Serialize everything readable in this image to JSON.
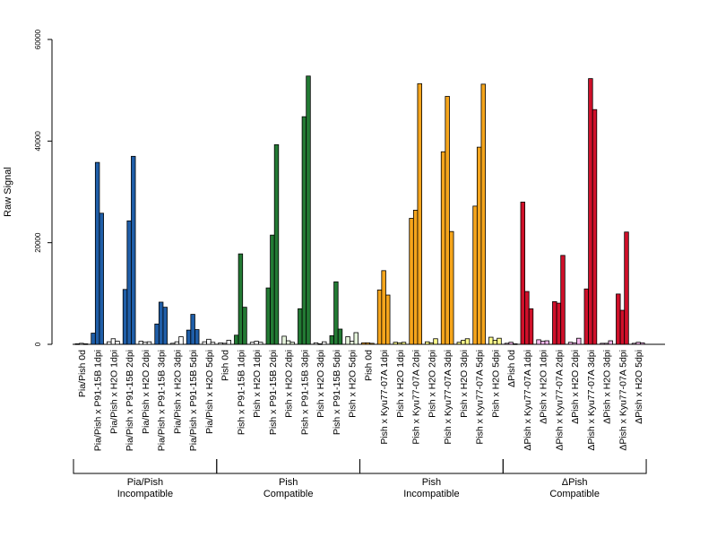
{
  "chart_data": {
    "type": "bar",
    "ylabel": "Raw Signal",
    "xlabel": "",
    "ylim": [
      0,
      60000
    ],
    "yticks": [
      0,
      20000,
      40000,
      60000
    ],
    "grid": false,
    "bars_per_condition": 3,
    "colors": {
      "blue": "#1f5ea8",
      "green": "#237a34",
      "orange": "#f5a51c",
      "red": "#d0102a",
      "blank": "#ffffff",
      "pale_green": "#e6f5dc",
      "pale_yellow": "#fdfb8a",
      "pale_pink": "#f7b8ee"
    },
    "categories": [
      "Pia/Pish 0d",
      "Pia/Pish x P91-15B 1dpi",
      "Pia/Pish x H2O 1dpi",
      "Pia/Pish x P91-15B 2dpi",
      "Pia/Pish x H2O 2dpi",
      "Pia/Pish x P91-15B 3dpi",
      "Pia/Pish x H2O 3dpi",
      "Pia/Pish x P91-15B 5dpi",
      "Pia/Pish x H2O 5dpi",
      "Pish 0d",
      "Pish x P91-15B 1dpi",
      "Pish x H2O 1dpi",
      "Pish x P91-15B 2dpi",
      "Pish x H2O 2dpi",
      "Pish x P91-15B 3dpi",
      "Pish x H2O 3dpi",
      "Pish x P91-15B 5dpi",
      "Pish x H2O 5dpi",
      "Pish 0d",
      "Pish x Kyu77-07A 1dpi",
      "Pish x H2O 1dpi",
      "Pish x Kyu77-07A 2dpi",
      "Pish x H2O 2dpi",
      "Pish x Kyu77-07A 3dpi",
      "Pish x H2O 3dpi",
      "Pish x Kyu77-07A 5dpi",
      "Pish x H2O 5dpi",
      "ΔPish 0d",
      "ΔPish x Kyu77-07A 1dpi",
      "ΔPish x H2O 1dpi",
      "ΔPish x Kyu77-07A 2dpi",
      "ΔPish x H2O 2dpi",
      "ΔPish x Kyu77-07A 3dpi",
      "ΔPish x H2O 3dpi",
      "ΔPish x Kyu77-07A 5dpi",
      "ΔPish x H2O 5dpi"
    ],
    "values": [
      [
        100,
        200,
        100
      ],
      [
        2200,
        35800,
        25800
      ],
      [
        500,
        1100,
        600
      ],
      [
        10800,
        24300,
        37000
      ],
      [
        600,
        400,
        500
      ],
      [
        4000,
        8300,
        7300
      ],
      [
        200,
        500,
        1500
      ],
      [
        2800,
        5900,
        2900
      ],
      [
        500,
        1000,
        400
      ],
      [
        300,
        200,
        800
      ],
      [
        1800,
        17800,
        7300
      ],
      [
        400,
        600,
        400
      ],
      [
        11100,
        21500,
        39300
      ],
      [
        1600,
        700,
        400
      ],
      [
        7000,
        44800,
        52800
      ],
      [
        300,
        100,
        500
      ],
      [
        1700,
        12300,
        3000
      ],
      [
        1500,
        600,
        2300
      ],
      [
        300,
        300,
        200
      ],
      [
        10700,
        14500,
        9700
      ],
      [
        400,
        300,
        400
      ],
      [
        24800,
        26400,
        51300
      ],
      [
        500,
        300,
        1100
      ],
      [
        37900,
        48800,
        22200
      ],
      [
        400,
        800,
        1100
      ],
      [
        27200,
        38800,
        51200
      ],
      [
        1400,
        800,
        1200
      ],
      [
        200,
        400,
        100
      ],
      [
        28000,
        10400,
        7000
      ],
      [
        900,
        600,
        700
      ],
      [
        8400,
        8100,
        17500
      ],
      [
        400,
        300,
        1200
      ],
      [
        10900,
        52300,
        46200
      ],
      [
        200,
        200,
        700
      ],
      [
        9900,
        6700,
        22100
      ],
      [
        200,
        400,
        300
      ]
    ],
    "bar_colors": [
      "blank",
      "blue",
      "blank",
      "blue",
      "blank",
      "blue",
      "blank",
      "blue",
      "blank",
      "blank",
      "green",
      "blank",
      "green",
      "pale_green",
      "green",
      "blank",
      "green",
      "pale_green",
      "orange",
      "orange",
      "pale_yellow",
      "orange",
      "pale_yellow",
      "orange",
      "pale_yellow",
      "orange",
      "pale_yellow",
      "pale_pink",
      "red",
      "pale_pink",
      "red",
      "pale_pink",
      "red",
      "pale_pink",
      "red",
      "pale_pink"
    ],
    "groups": [
      {
        "line1": "Pia/Pish",
        "line2": "Incompatible",
        "start": 0,
        "end": 8
      },
      {
        "line1": "Pish",
        "line2": "Compatible",
        "start": 9,
        "end": 17
      },
      {
        "line1": "Pish",
        "line2": "Incompatible",
        "start": 18,
        "end": 26
      },
      {
        "line1": "ΔPish",
        "line2": "Compatible",
        "start": 27,
        "end": 35
      }
    ]
  }
}
